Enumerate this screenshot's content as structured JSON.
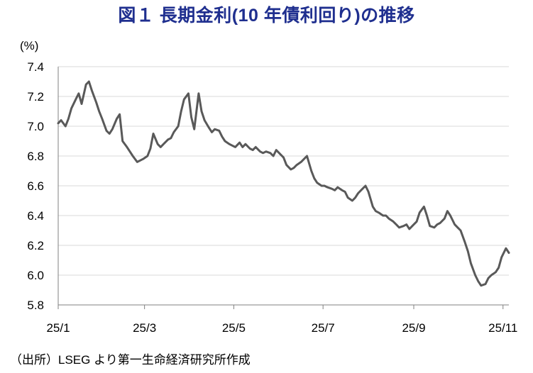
{
  "chart_data": {
    "type": "line",
    "title": "図１ 長期金利(10 年債利回り)の推移",
    "ylabel": "(%)",
    "source": "（出所）LSEG より第一生命経済研究所作成",
    "ylim": [
      5.8,
      7.4
    ],
    "yticks": [
      "5.8",
      "6.0",
      "6.2",
      "6.4",
      "6.6",
      "6.8",
      "7.0",
      "7.2",
      "7.4"
    ],
    "xlim": [
      "2025-01-01",
      "2025-11-05"
    ],
    "xticks": [
      {
        "label": "25/1",
        "date": "2025-01-01"
      },
      {
        "label": "25/3",
        "date": "2025-03-01"
      },
      {
        "label": "25/5",
        "date": "2025-05-01"
      },
      {
        "label": "25/7",
        "date": "2025-07-01"
      },
      {
        "label": "25/9",
        "date": "2025-09-01"
      },
      {
        "label": "25/11",
        "date": "2025-11-01"
      }
    ],
    "grid": true,
    "line_color": "#595959",
    "series": [
      {
        "x": [
          "2025-01-01",
          "2025-01-03",
          "2025-01-06",
          "2025-01-08",
          "2025-01-10",
          "2025-01-13",
          "2025-01-15",
          "2025-01-17",
          "2025-01-20",
          "2025-01-22",
          "2025-01-24",
          "2025-01-27",
          "2025-01-29",
          "2025-01-31",
          "2025-02-03",
          "2025-02-05",
          "2025-02-07",
          "2025-02-10",
          "2025-02-12",
          "2025-02-14",
          "2025-02-17",
          "2025-02-19",
          "2025-02-21",
          "2025-02-24",
          "2025-02-26",
          "2025-02-28",
          "2025-03-03",
          "2025-03-05",
          "2025-03-07",
          "2025-03-10",
          "2025-03-12",
          "2025-03-14",
          "2025-03-17",
          "2025-03-19",
          "2025-03-21",
          "2025-03-24",
          "2025-03-26",
          "2025-03-28",
          "2025-03-31",
          "2025-04-02",
          "2025-04-04",
          "2025-04-07",
          "2025-04-09",
          "2025-04-11",
          "2025-04-14",
          "2025-04-16",
          "2025-04-18",
          "2025-04-21",
          "2025-04-23",
          "2025-04-25",
          "2025-04-28",
          "2025-04-30",
          "2025-05-02",
          "2025-05-05",
          "2025-05-07",
          "2025-05-09",
          "2025-05-12",
          "2025-05-14",
          "2025-05-16",
          "2025-05-19",
          "2025-05-21",
          "2025-05-23",
          "2025-05-26",
          "2025-05-28",
          "2025-05-30",
          "2025-06-02",
          "2025-06-04",
          "2025-06-06",
          "2025-06-09",
          "2025-06-11",
          "2025-06-13",
          "2025-06-16",
          "2025-06-18",
          "2025-06-20",
          "2025-06-23",
          "2025-06-25",
          "2025-06-27",
          "2025-06-30",
          "2025-07-02",
          "2025-07-04",
          "2025-07-07",
          "2025-07-09",
          "2025-07-11",
          "2025-07-14",
          "2025-07-16",
          "2025-07-18",
          "2025-07-21",
          "2025-07-23",
          "2025-07-25",
          "2025-07-28",
          "2025-07-30",
          "2025-08-01",
          "2025-08-04",
          "2025-08-06",
          "2025-08-08",
          "2025-08-11",
          "2025-08-13",
          "2025-08-15",
          "2025-08-18",
          "2025-08-20",
          "2025-08-22",
          "2025-08-25",
          "2025-08-27",
          "2025-08-29",
          "2025-09-01",
          "2025-09-03",
          "2025-09-05",
          "2025-09-08",
          "2025-09-10",
          "2025-09-12",
          "2025-09-15",
          "2025-09-17",
          "2025-09-19",
          "2025-09-22",
          "2025-09-24",
          "2025-09-26",
          "2025-09-29",
          "2025-10-01",
          "2025-10-03",
          "2025-10-06",
          "2025-10-08",
          "2025-10-10",
          "2025-10-13",
          "2025-10-15",
          "2025-10-17",
          "2025-10-20",
          "2025-10-22",
          "2025-10-24",
          "2025-10-27",
          "2025-10-29",
          "2025-10-31",
          "2025-11-03",
          "2025-11-05"
        ],
        "y": [
          7.02,
          7.04,
          7.0,
          7.05,
          7.12,
          7.18,
          7.22,
          7.15,
          7.28,
          7.3,
          7.24,
          7.16,
          7.1,
          7.05,
          6.97,
          6.95,
          6.98,
          7.05,
          7.08,
          6.9,
          6.86,
          6.83,
          6.8,
          6.76,
          6.77,
          6.78,
          6.8,
          6.85,
          6.95,
          6.88,
          6.86,
          6.88,
          6.91,
          6.92,
          6.96,
          7.0,
          7.1,
          7.18,
          7.22,
          7.06,
          6.98,
          7.22,
          7.1,
          7.04,
          6.99,
          6.96,
          6.98,
          6.97,
          6.93,
          6.9,
          6.88,
          6.87,
          6.86,
          6.89,
          6.86,
          6.88,
          6.85,
          6.84,
          6.86,
          6.83,
          6.82,
          6.83,
          6.82,
          6.8,
          6.84,
          6.81,
          6.79,
          6.74,
          6.71,
          6.72,
          6.74,
          6.76,
          6.78,
          6.8,
          6.7,
          6.65,
          6.62,
          6.6,
          6.6,
          6.59,
          6.58,
          6.57,
          6.59,
          6.57,
          6.56,
          6.52,
          6.5,
          6.52,
          6.55,
          6.58,
          6.6,
          6.56,
          6.46,
          6.43,
          6.42,
          6.4,
          6.4,
          6.38,
          6.36,
          6.34,
          6.32,
          6.33,
          6.34,
          6.31,
          6.34,
          6.36,
          6.42,
          6.46,
          6.4,
          6.33,
          6.32,
          6.34,
          6.35,
          6.38,
          6.43,
          6.4,
          6.34,
          6.32,
          6.3,
          6.22,
          6.16,
          6.08,
          6.0,
          5.96,
          5.93,
          5.94,
          5.98,
          6.0,
          6.02,
          6.05,
          6.12,
          6.18,
          6.15
        ]
      }
    ]
  }
}
